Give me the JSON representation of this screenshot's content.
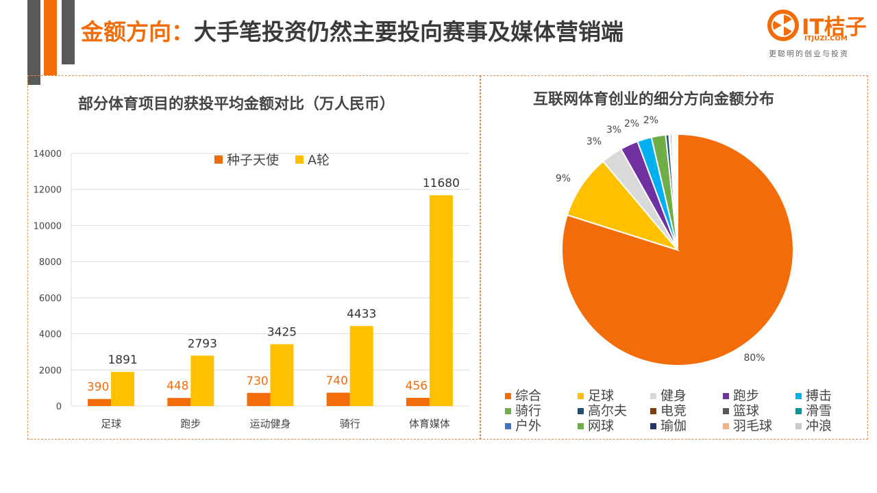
{
  "header": {
    "title_accent": "金额方向：",
    "title_rest": "大手笔投资仍然主要投向赛事及媒体营销端"
  },
  "logo": {
    "brand": "IT桔子",
    "domain": "ITJUZI.COM",
    "slogan": "更聪明的创业与投资"
  },
  "colors": {
    "accent": "#f26c0a",
    "gray_bar": "#595959",
    "panel_border": "#e08a45"
  },
  "chart_data": [
    {
      "type": "bar",
      "title": "部分体育项目的获投平均金额对比（万人民币）",
      "categories": [
        "足球",
        "跑步",
        "运动健身",
        "骑行",
        "体育媒体"
      ],
      "series": [
        {
          "name": "种子天使",
          "color": "#f26c0a",
          "values": [
            390,
            448,
            730,
            740,
            456
          ]
        },
        {
          "name": "A轮",
          "color": "#ffc000",
          "values": [
            1891,
            2793,
            3425,
            4433,
            11680
          ]
        }
      ],
      "ylim": [
        0,
        14000
      ],
      "yticks": [
        0,
        2000,
        4000,
        6000,
        8000,
        10000,
        12000,
        14000
      ],
      "legend_position": "top-center",
      "grid": true
    },
    {
      "type": "pie",
      "title": "互联网体育创业的细分方向金额分布",
      "slices": [
        {
          "label": "综合",
          "value": 80,
          "color": "#f26c0a",
          "data_label": "80%"
        },
        {
          "label": "足球",
          "value": 9,
          "color": "#ffc000",
          "data_label": "9%"
        },
        {
          "label": "健身",
          "value": 3,
          "color": "#d9d9d9",
          "data_label": "3%"
        },
        {
          "label": "跑步",
          "value": 2.5,
          "color": "#7030a0",
          "data_label": "3%"
        },
        {
          "label": "搏击",
          "value": 2,
          "color": "#00b0f0",
          "data_label": "2%"
        },
        {
          "label": "骑行",
          "value": 2,
          "color": "#70ad47",
          "data_label": "2%"
        },
        {
          "label": "高尔夫",
          "value": 0.45,
          "color": "#1f4e79",
          "data_label": ""
        },
        {
          "label": "电竞",
          "value": 0.15,
          "color": "#843c0c",
          "data_label": ""
        },
        {
          "label": "篮球",
          "value": 0.25,
          "color": "#595959",
          "data_label": ""
        },
        {
          "label": "滑雪",
          "value": 0.15,
          "color": "#00999a",
          "data_label": ""
        },
        {
          "label": "户外",
          "value": 0.1,
          "color": "#4472c4",
          "data_label": ""
        },
        {
          "label": "网球",
          "value": 0.15,
          "color": "#70ad47",
          "data_label": ""
        },
        {
          "label": "瑜伽",
          "value": 0.15,
          "color": "#1f3864",
          "data_label": ""
        },
        {
          "label": "羽毛球",
          "value": 0.1,
          "color": "#f4b183",
          "data_label": ""
        },
        {
          "label": "冲浪",
          "value": 0.15,
          "color": "#c9c9c9",
          "data_label": ""
        }
      ],
      "legend_position": "bottom"
    }
  ]
}
